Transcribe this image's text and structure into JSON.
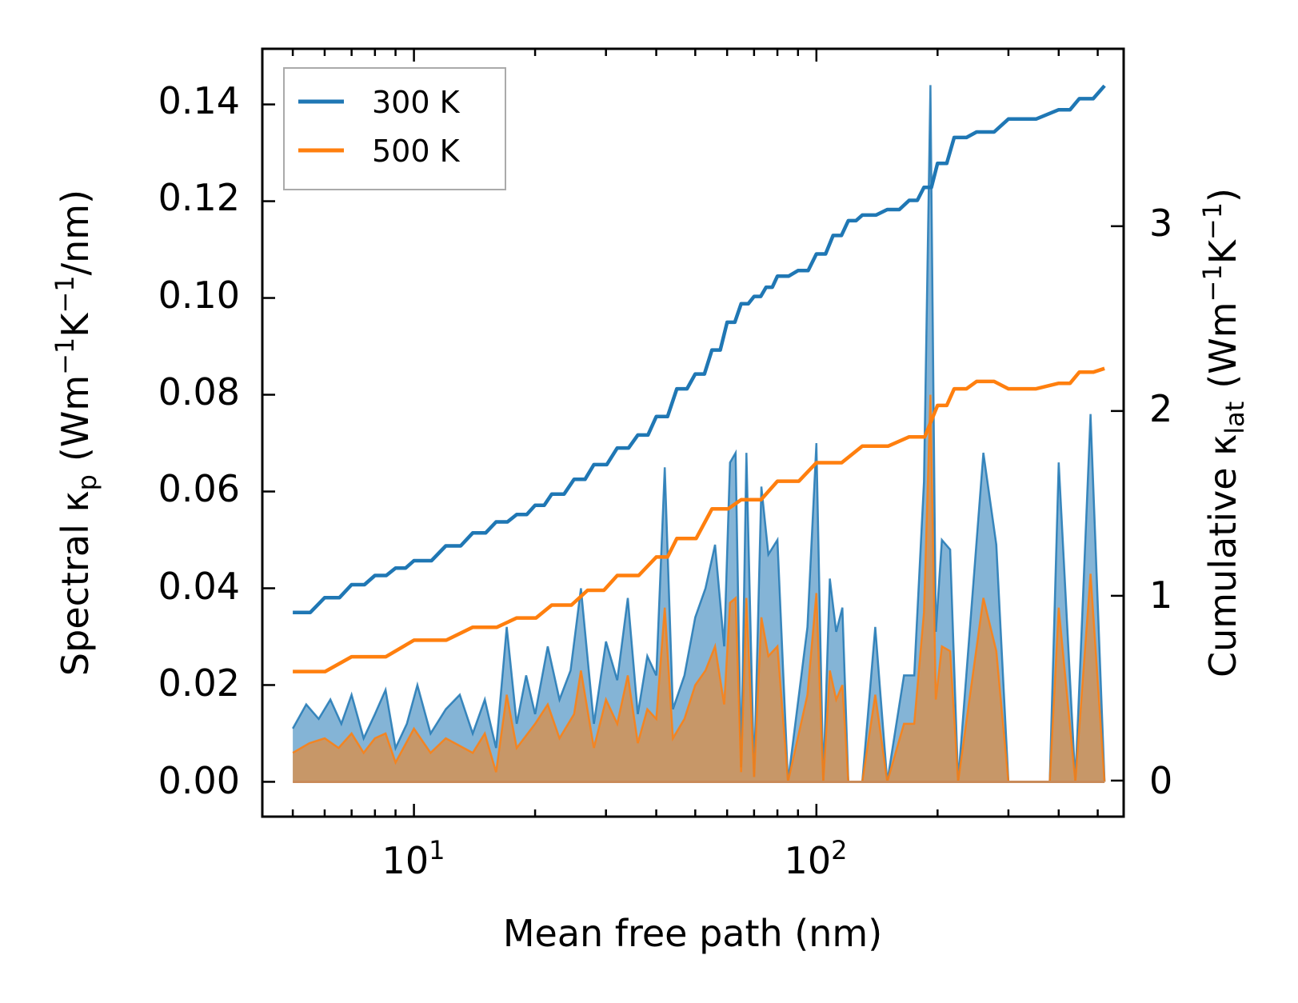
{
  "chart_data": {
    "type": "line+area",
    "title": "",
    "xlabel": "Mean free path (nm)",
    "ylabel_left": {
      "prefix": "Spectral κ",
      "sub": "p",
      "units": "(Wm",
      "exp1": "−1",
      "mid": "K",
      "exp2": "−1",
      "tail": "/nm)"
    },
    "ylabel_right": {
      "prefix": "Cumulative κ",
      "sub": "lat",
      "units": "(Wm",
      "exp1": "−1",
      "mid": "K",
      "exp2": "−1",
      "tail": ")"
    },
    "x_scale": "log",
    "xlim": [
      4.2,
      580
    ],
    "ylim_left": [
      -0.0072,
      0.1515
    ],
    "ylim_right": [
      -0.195,
      3.96
    ],
    "x_ticks": [
      {
        "value": 10,
        "base": "10",
        "exp": "1"
      },
      {
        "value": 100,
        "base": "10",
        "exp": "2"
      }
    ],
    "y_ticks_left": [
      "0.00",
      "0.02",
      "0.04",
      "0.06",
      "0.08",
      "0.10",
      "0.12",
      "0.14"
    ],
    "y_ticks_right": [
      "0",
      "1",
      "2",
      "3"
    ],
    "legend": {
      "position": "top-left",
      "entries": [
        {
          "label": "300 K",
          "color": "#1f77b4"
        },
        {
          "label": "500 K",
          "color": "#ff7f0e"
        }
      ]
    },
    "mfp_range": [
      5,
      520
    ],
    "cumulative_300K": [
      [
        5.0,
        0.91
      ],
      [
        6.0,
        0.99
      ],
      [
        7.0,
        1.06
      ],
      [
        8.0,
        1.11
      ],
      [
        9.0,
        1.15
      ],
      [
        10.0,
        1.19
      ],
      [
        12.0,
        1.27
      ],
      [
        14.0,
        1.34
      ],
      [
        16.0,
        1.4
      ],
      [
        18.0,
        1.44
      ],
      [
        20.0,
        1.49
      ],
      [
        22.0,
        1.55
      ],
      [
        25.0,
        1.63
      ],
      [
        28.0,
        1.71
      ],
      [
        32.0,
        1.8
      ],
      [
        36.0,
        1.87
      ],
      [
        40.0,
        1.97
      ],
      [
        45.0,
        2.12
      ],
      [
        50.0,
        2.2
      ],
      [
        55.0,
        2.33
      ],
      [
        60.0,
        2.48
      ],
      [
        65.0,
        2.58
      ],
      [
        70.0,
        2.62
      ],
      [
        75.0,
        2.67
      ],
      [
        80.0,
        2.73
      ],
      [
        90.0,
        2.76
      ],
      [
        100.0,
        2.85
      ],
      [
        110.0,
        2.95
      ],
      [
        120.0,
        3.03
      ],
      [
        130.0,
        3.06
      ],
      [
        150.0,
        3.09
      ],
      [
        170.0,
        3.14
      ],
      [
        185.0,
        3.21
      ],
      [
        200.0,
        3.34
      ],
      [
        220.0,
        3.48
      ],
      [
        250.0,
        3.51
      ],
      [
        300.0,
        3.58
      ],
      [
        400.0,
        3.63
      ],
      [
        450.0,
        3.69
      ],
      [
        520.0,
        3.76
      ]
    ],
    "cumulative_500K": [
      [
        5.0,
        0.59
      ],
      [
        7.0,
        0.67
      ],
      [
        10.0,
        0.76
      ],
      [
        14.0,
        0.83
      ],
      [
        18.0,
        0.88
      ],
      [
        22.0,
        0.95
      ],
      [
        27.0,
        1.03
      ],
      [
        32.0,
        1.11
      ],
      [
        40.0,
        1.21
      ],
      [
        45.0,
        1.31
      ],
      [
        55.0,
        1.47
      ],
      [
        65.0,
        1.52
      ],
      [
        80.0,
        1.62
      ],
      [
        100.0,
        1.72
      ],
      [
        130.0,
        1.81
      ],
      [
        170.0,
        1.86
      ],
      [
        200.0,
        2.03
      ],
      [
        220.0,
        2.12
      ],
      [
        250.0,
        2.16
      ],
      [
        300.0,
        2.12
      ],
      [
        400.0,
        2.15
      ],
      [
        450.0,
        2.21
      ],
      [
        520.0,
        2.23
      ]
    ],
    "spectral_300K": [
      [
        5.0,
        0.011
      ],
      [
        5.4,
        0.016
      ],
      [
        5.8,
        0.013
      ],
      [
        6.2,
        0.017
      ],
      [
        6.6,
        0.012
      ],
      [
        7.0,
        0.018
      ],
      [
        7.5,
        0.009
      ],
      [
        8.0,
        0.014
      ],
      [
        8.5,
        0.019
      ],
      [
        9.0,
        0.007
      ],
      [
        9.6,
        0.012
      ],
      [
        10.2,
        0.02
      ],
      [
        11.0,
        0.01
      ],
      [
        12.0,
        0.015
      ],
      [
        13.0,
        0.018
      ],
      [
        14.0,
        0.01
      ],
      [
        15.0,
        0.017
      ],
      [
        16.0,
        0.007
      ],
      [
        17.0,
        0.032
      ],
      [
        18.0,
        0.012
      ],
      [
        19.0,
        0.022
      ],
      [
        20.0,
        0.014
      ],
      [
        21.5,
        0.028
      ],
      [
        23.0,
        0.017
      ],
      [
        24.5,
        0.023
      ],
      [
        26.0,
        0.04
      ],
      [
        28.0,
        0.012
      ],
      [
        30.0,
        0.029
      ],
      [
        32.0,
        0.021
      ],
      [
        34.0,
        0.038
      ],
      [
        36.0,
        0.014
      ],
      [
        38.0,
        0.026
      ],
      [
        40.0,
        0.022
      ],
      [
        42.0,
        0.065
      ],
      [
        44.0,
        0.015
      ],
      [
        47.0,
        0.022
      ],
      [
        50.0,
        0.034
      ],
      [
        53.0,
        0.04
      ],
      [
        56.0,
        0.049
      ],
      [
        59.0,
        0.028
      ],
      [
        61.0,
        0.066
      ],
      [
        63.0,
        0.068
      ],
      [
        65.0,
        0.003
      ],
      [
        67.0,
        0.068
      ],
      [
        70.0,
        0.001
      ],
      [
        73.0,
        0.061
      ],
      [
        76.0,
        0.047
      ],
      [
        80.0,
        0.05
      ],
      [
        85.0,
        0.0
      ],
      [
        95.0,
        0.032
      ],
      [
        100.0,
        0.07
      ],
      [
        104.0,
        0.0
      ],
      [
        108.0,
        0.042
      ],
      [
        112.0,
        0.031
      ],
      [
        116.0,
        0.036
      ],
      [
        120.0,
        0.0
      ],
      [
        130.0,
        0.0
      ],
      [
        140.0,
        0.032
      ],
      [
        150.0,
        0.0
      ],
      [
        165.0,
        0.022
      ],
      [
        175.0,
        0.022
      ],
      [
        185.0,
        0.062
      ],
      [
        192.0,
        0.144
      ],
      [
        198.0,
        0.031
      ],
      [
        205.0,
        0.05
      ],
      [
        215.0,
        0.048
      ],
      [
        225.0,
        0.0
      ],
      [
        260.0,
        0.068
      ],
      [
        280.0,
        0.049
      ],
      [
        300.0,
        0.0
      ],
      [
        380.0,
        0.0
      ],
      [
        400.0,
        0.066
      ],
      [
        440.0,
        0.0
      ],
      [
        480.0,
        0.076
      ],
      [
        520.0,
        0.0
      ]
    ],
    "spectral_500K": [
      [
        5.0,
        0.006
      ],
      [
        5.5,
        0.008
      ],
      [
        6.0,
        0.009
      ],
      [
        6.5,
        0.007
      ],
      [
        7.0,
        0.01
      ],
      [
        7.5,
        0.006
      ],
      [
        8.0,
        0.009
      ],
      [
        8.5,
        0.01
      ],
      [
        9.0,
        0.004
      ],
      [
        10.0,
        0.011
      ],
      [
        11.0,
        0.006
      ],
      [
        12.0,
        0.009
      ],
      [
        14.0,
        0.006
      ],
      [
        15.0,
        0.01
      ],
      [
        16.0,
        0.002
      ],
      [
        17.0,
        0.018
      ],
      [
        18.0,
        0.007
      ],
      [
        20.0,
        0.012
      ],
      [
        21.5,
        0.016
      ],
      [
        23.0,
        0.009
      ],
      [
        25.0,
        0.014
      ],
      [
        26.0,
        0.023
      ],
      [
        28.0,
        0.007
      ],
      [
        30.0,
        0.017
      ],
      [
        32.0,
        0.012
      ],
      [
        34.0,
        0.022
      ],
      [
        36.0,
        0.008
      ],
      [
        38.0,
        0.015
      ],
      [
        40.0,
        0.013
      ],
      [
        42.0,
        0.036
      ],
      [
        44.0,
        0.009
      ],
      [
        47.0,
        0.013
      ],
      [
        50.0,
        0.02
      ],
      [
        53.0,
        0.023
      ],
      [
        56.0,
        0.028
      ],
      [
        59.0,
        0.016
      ],
      [
        61.0,
        0.037
      ],
      [
        63.0,
        0.038
      ],
      [
        65.0,
        0.002
      ],
      [
        67.0,
        0.038
      ],
      [
        70.0,
        0.001
      ],
      [
        73.0,
        0.034
      ],
      [
        76.0,
        0.026
      ],
      [
        80.0,
        0.028
      ],
      [
        85.0,
        0.0
      ],
      [
        95.0,
        0.018
      ],
      [
        100.0,
        0.039
      ],
      [
        104.0,
        0.0
      ],
      [
        108.0,
        0.023
      ],
      [
        112.0,
        0.017
      ],
      [
        116.0,
        0.02
      ],
      [
        120.0,
        0.0
      ],
      [
        130.0,
        0.0
      ],
      [
        140.0,
        0.018
      ],
      [
        150.0,
        0.0
      ],
      [
        165.0,
        0.012
      ],
      [
        175.0,
        0.012
      ],
      [
        185.0,
        0.035
      ],
      [
        192.0,
        0.08
      ],
      [
        198.0,
        0.017
      ],
      [
        205.0,
        0.028
      ],
      [
        215.0,
        0.027
      ],
      [
        225.0,
        0.0
      ],
      [
        260.0,
        0.038
      ],
      [
        280.0,
        0.027
      ],
      [
        300.0,
        0.0
      ],
      [
        380.0,
        0.0
      ],
      [
        400.0,
        0.036
      ],
      [
        440.0,
        0.0
      ],
      [
        480.0,
        0.043
      ],
      [
        520.0,
        0.0
      ]
    ]
  }
}
